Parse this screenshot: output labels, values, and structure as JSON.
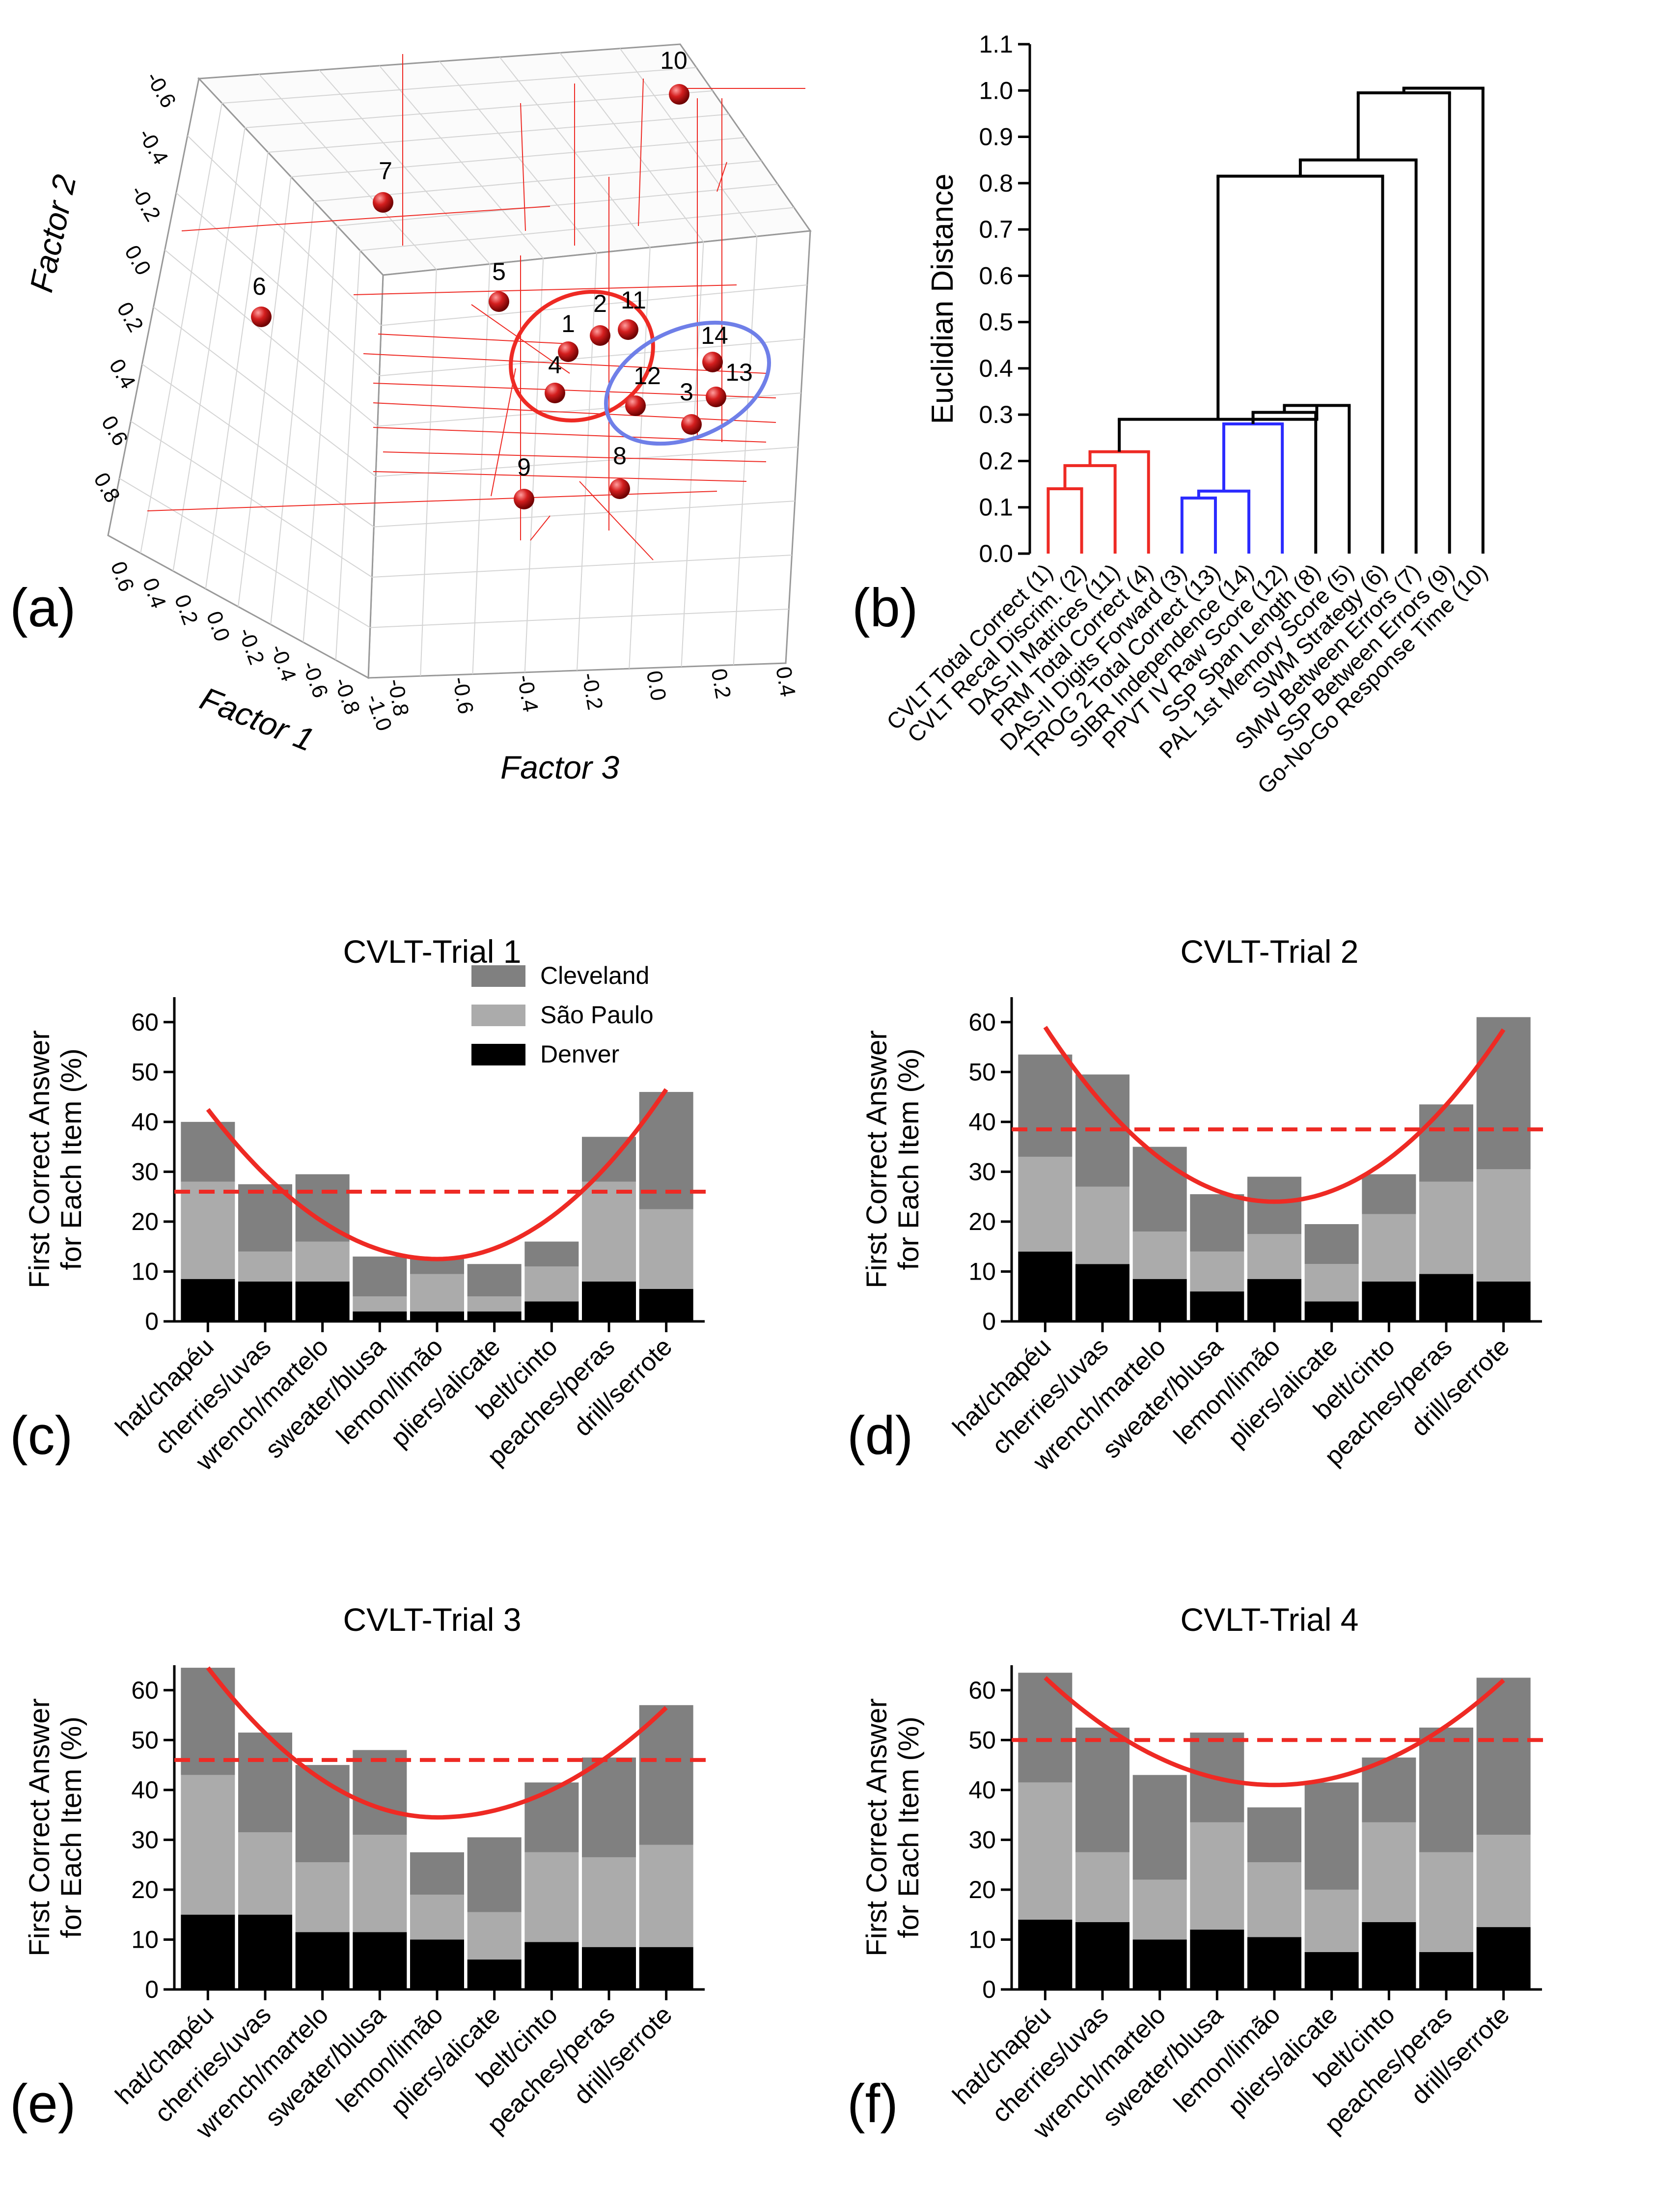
{
  "panel_labels": [
    "(a)",
    "(b)",
    "(c)",
    "(d)",
    "(e)",
    "(f)"
  ],
  "colors": {
    "cleveland": "#808080",
    "saopaulo": "#ababab",
    "denver": "#000000",
    "fit_curve": "#ee2a24",
    "red_cluster": "#ee2a24",
    "blue_cluster": "#2b2bff",
    "blue_ellipse": "#6f7fe8",
    "sphere": "#d41e1e"
  },
  "chart_data": [
    {
      "id": "a",
      "type": "scatter",
      "title": "",
      "axes": {
        "factor1": {
          "label": "Factor 1",
          "ticks": [
            "0.6",
            "0.4",
            "0.2",
            "0.0",
            "-0.2",
            "-0.4",
            "-0.6",
            "-0.8",
            "-1.0"
          ]
        },
        "factor2": {
          "label": "Factor 2",
          "ticks": [
            "-0.6",
            "-0.4",
            "-0.2",
            "0.0",
            "0.2",
            "0.4",
            "0.6",
            "0.8"
          ]
        },
        "factor3": {
          "label": "Factor 3",
          "ticks": [
            "-0.8",
            "-0.6",
            "-0.4",
            "-0.2",
            "0.0",
            "0.2",
            "0.4"
          ]
        }
      },
      "points": [
        {
          "label": "1"
        },
        {
          "label": "2"
        },
        {
          "label": "3"
        },
        {
          "label": "4"
        },
        {
          "label": "5"
        },
        {
          "label": "6"
        },
        {
          "label": "7"
        },
        {
          "label": "8"
        },
        {
          "label": "9"
        },
        {
          "label": "10"
        },
        {
          "label": "11"
        },
        {
          "label": "12"
        },
        {
          "label": "13"
        },
        {
          "label": "14"
        }
      ],
      "clusters": [
        {
          "color": "red",
          "members": [
            "1",
            "2",
            "4",
            "11"
          ]
        },
        {
          "color": "blue",
          "members": [
            "3",
            "12",
            "13",
            "14"
          ]
        }
      ]
    },
    {
      "id": "b",
      "type": "dendrogram",
      "ylabel": "Euclidian Distance",
      "ylim": [
        0,
        1.1
      ],
      "yticks": [
        "0.0",
        "0.1",
        "0.2",
        "0.3",
        "0.4",
        "0.5",
        "0.6",
        "0.7",
        "0.8",
        "0.9",
        "1.0",
        "1.1"
      ],
      "leaves": [
        "CVLT Total Correct (1)",
        "CVLT Recal Discrim. (2)",
        "DAS-II Matrices (11)",
        "PRM Total Correct (4)",
        "DAS-II Digits Forward (3)",
        "TROG 2 Total Correct (13)",
        "SIBR Independence (14)",
        "PPVT IV Raw Score (12)",
        "SSP Span Length (8)",
        "PAL 1st Memory Score (5)",
        "SWM Strategy (6)",
        "SMW Between Errors (7)",
        "SSP Between Errors (9)",
        "Go-No-Go Response Time (10)"
      ],
      "merges": [
        {
          "a": "L0",
          "b": "L1",
          "height": 0.14,
          "color": "red"
        },
        {
          "a": "N0",
          "b": "L2",
          "height": 0.19,
          "color": "red"
        },
        {
          "a": "N1",
          "b": "L3",
          "height": 0.22,
          "color": "red"
        },
        {
          "a": "L4",
          "b": "L5",
          "height": 0.12,
          "color": "blue"
        },
        {
          "a": "N3",
          "b": "L6",
          "height": 0.135,
          "color": "blue"
        },
        {
          "a": "N4",
          "b": "L7",
          "height": 0.28,
          "color": "blue"
        },
        {
          "a": "N5",
          "b": "L8",
          "height": 0.305,
          "color": "black"
        },
        {
          "a": "N6",
          "b": "L9",
          "height": 0.32,
          "color": "black"
        },
        {
          "a": "N2",
          "b": "N7",
          "height": 0.29,
          "color": "black"
        },
        {
          "a": "N8",
          "b": "L10",
          "height": 0.815,
          "color": "black"
        },
        {
          "a": "N9",
          "b": "L11",
          "height": 0.85,
          "color": "black"
        },
        {
          "a": "N10",
          "b": "L12",
          "height": 0.995,
          "color": "black"
        },
        {
          "a": "N11",
          "b": "L13",
          "height": 1.005,
          "color": "black"
        }
      ]
    },
    {
      "id": "c",
      "type": "bar",
      "stacked": true,
      "title": "CVLT-Trial 1",
      "ylabel": "First Correct Answer for Each Item (%)",
      "ylabel_lines": [
        "First Correct Answer",
        "for Each Item (%)"
      ],
      "ylim": [
        0,
        65
      ],
      "yticks": [
        0,
        10,
        20,
        30,
        40,
        50,
        60
      ],
      "categories": [
        "hat/chapéu",
        "cherries/uvas",
        "wrench/martelo",
        "sweater/blusa",
        "lemon/limão",
        "pliers/alicate",
        "belt/cinto",
        "peaches/peras",
        "drill/serrote"
      ],
      "legend": [
        "Cleveland",
        "São Paulo",
        "Denver"
      ],
      "series": [
        {
          "name": "Denver",
          "values": [
            8.5,
            8,
            8,
            2,
            2,
            2,
            4,
            8,
            6.5
          ]
        },
        {
          "name": "São Paulo",
          "values": [
            19.5,
            6,
            8,
            3,
            7.5,
            3,
            7,
            20,
            16
          ]
        },
        {
          "name": "Cleveland",
          "values": [
            12,
            13.5,
            13.5,
            8,
            3,
            6.5,
            5,
            9,
            23.5
          ]
        }
      ],
      "fit_curve": {
        "vertex_x": 4,
        "vertex_y": 12.5,
        "left_y": 42.5,
        "right_y": 46.5
      },
      "mean_line": 26
    },
    {
      "id": "d",
      "type": "bar",
      "stacked": true,
      "title": "CVLT-Trial 2",
      "ylabel": "First Correct Answer for Each Item (%)",
      "ylabel_lines": [
        "First Correct Answer",
        "for Each Item (%)"
      ],
      "ylim": [
        0,
        65
      ],
      "yticks": [
        0,
        10,
        20,
        30,
        40,
        50,
        60
      ],
      "categories": [
        "hat/chapéu",
        "cherries/uvas",
        "wrench/martelo",
        "sweater/blusa",
        "lemon/limão",
        "pliers/alicate",
        "belt/cinto",
        "peaches/peras",
        "drill/serrote"
      ],
      "series": [
        {
          "name": "Denver",
          "values": [
            14,
            11.5,
            8.5,
            6,
            8.5,
            4,
            8,
            9.5,
            8
          ]
        },
        {
          "name": "São Paulo",
          "values": [
            19,
            15.5,
            9.5,
            8,
            9,
            7.5,
            13.5,
            18.5,
            22.5
          ]
        },
        {
          "name": "Cleveland",
          "values": [
            20.5,
            22.5,
            17,
            11.5,
            11.5,
            8,
            8,
            15.5,
            30.5
          ]
        }
      ],
      "fit_curve": {
        "vertex_x": 4,
        "vertex_y": 24,
        "left_y": 59,
        "right_y": 58.5
      },
      "mean_line": 38.5
    },
    {
      "id": "e",
      "type": "bar",
      "stacked": true,
      "title": "CVLT-Trial 3",
      "ylabel": "First Correct Answer for Each Item (%)",
      "ylabel_lines": [
        "First Correct Answer",
        "for Each Item (%)"
      ],
      "ylim": [
        0,
        65
      ],
      "yticks": [
        0,
        10,
        20,
        30,
        40,
        50,
        60
      ],
      "categories": [
        "hat/chapéu",
        "cherries/uvas",
        "wrench/martelo",
        "sweater/blusa",
        "lemon/limão",
        "pliers/alicate",
        "belt/cinto",
        "peaches/peras",
        "drill/serrote"
      ],
      "series": [
        {
          "name": "Denver",
          "values": [
            15,
            15,
            11.5,
            11.5,
            10,
            6,
            9.5,
            8.5,
            8.5
          ]
        },
        {
          "name": "São Paulo",
          "values": [
            28,
            16.5,
            14,
            19.5,
            9,
            9.5,
            18,
            18,
            20.5
          ]
        },
        {
          "name": "Cleveland",
          "values": [
            21.5,
            20,
            19.5,
            17,
            8.5,
            15,
            14,
            20,
            28
          ]
        }
      ],
      "fit_curve": {
        "vertex_x": 4,
        "vertex_y": 34.5,
        "left_y": 64.5,
        "right_y": 56.5
      },
      "mean_line": 46
    },
    {
      "id": "f",
      "type": "bar",
      "stacked": true,
      "title": "CVLT-Trial 4",
      "ylabel": "First Correct Answer for Each Item (%)",
      "ylabel_lines": [
        "First Correct Answer",
        "for Each Item (%)"
      ],
      "ylim": [
        0,
        65
      ],
      "yticks": [
        0,
        10,
        20,
        30,
        40,
        50,
        60
      ],
      "categories": [
        "hat/chapéu",
        "cherries/uvas",
        "wrench/martelo",
        "sweater/blusa",
        "lemon/limão",
        "pliers/alicate",
        "belt/cinto",
        "peaches/peras",
        "drill/serrote"
      ],
      "series": [
        {
          "name": "Denver",
          "values": [
            14,
            13.5,
            10,
            12,
            10.5,
            7.5,
            13.5,
            7.5,
            12.5
          ]
        },
        {
          "name": "São Paulo",
          "values": [
            27.5,
            14,
            12,
            21.5,
            15,
            12.5,
            20,
            20,
            18.5
          ]
        },
        {
          "name": "Cleveland",
          "values": [
            22,
            25,
            21,
            18,
            11,
            21.5,
            13,
            25,
            31.5
          ]
        }
      ],
      "fit_curve": {
        "vertex_x": 4,
        "vertex_y": 41,
        "left_y": 62.5,
        "right_y": 62
      },
      "mean_line": 50
    }
  ]
}
